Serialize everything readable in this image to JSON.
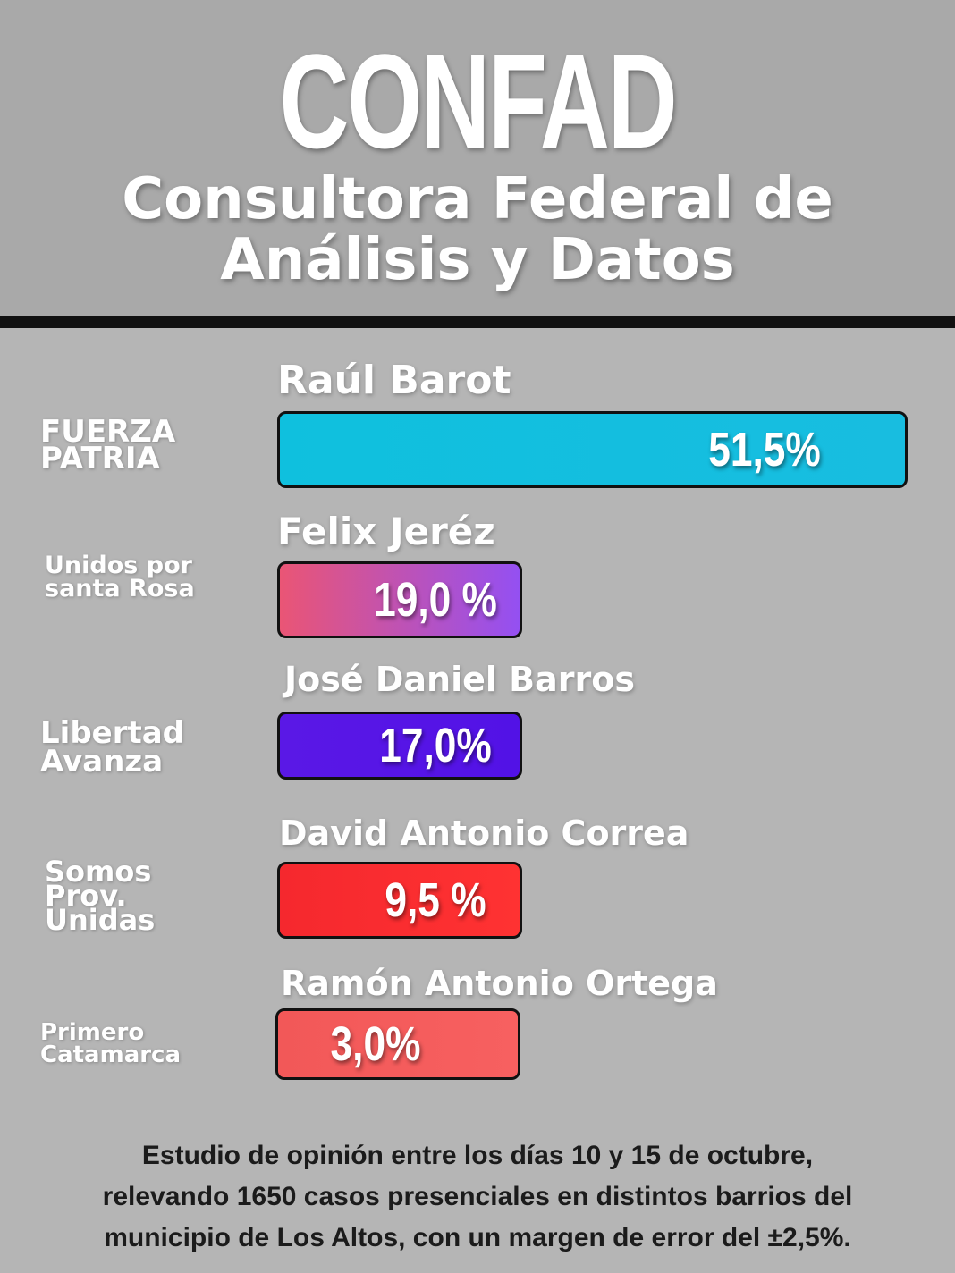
{
  "header": {
    "brand": "CONFAD",
    "subtitle_line1": "Consultora Federal de",
    "subtitle_line2": "Análisis y Datos"
  },
  "chart_data": {
    "type": "bar",
    "orientation": "horizontal",
    "categories": [
      "Raúl Barot",
      "Felix Jeréz",
      "José Daniel Barros",
      "David Antonio Correa",
      "Ramón Antonio Ortega"
    ],
    "parties": [
      "FUERZA\nPATRIA",
      "Unidos por\nsanta Rosa",
      "Libertad\nAvanza",
      "Somos\nProv.\nUnidas",
      "Primero\nCatamarca"
    ],
    "values": [
      51.5,
      19.0,
      17.0,
      9.5,
      3.0
    ],
    "value_labels": [
      "51,5%",
      "19,0 %",
      "17,0%",
      "9,5 %",
      "3,0%"
    ],
    "bar_colors": [
      "#0fc0de",
      "#ea5575",
      "#5a18e6",
      "#f5282e",
      "#f25858"
    ],
    "bar_gradient_end": [
      "#18bde0",
      "#9450f2",
      "#5212e6",
      "#ff3232",
      "#f76060"
    ]
  },
  "footnote": {
    "line1": "Estudio de opinión entre los días 10 y 15 de octubre,",
    "line2": "relevando 1650 casos presenciales en distintos barrios del",
    "line3": "municipio de Los Altos, con un margen de error del ±2,5%."
  }
}
